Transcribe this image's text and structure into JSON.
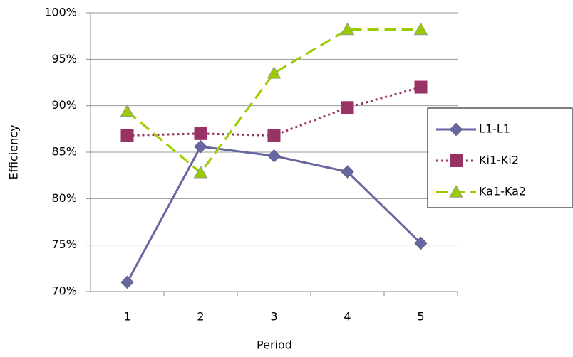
{
  "chart_data": {
    "type": "line",
    "x_label": "Period",
    "y_label": "Efficiency",
    "categories": [
      "1",
      "2",
      "3",
      "4",
      "5"
    ],
    "series": [
      {
        "name": "L1-L1",
        "color": "#6666a0",
        "marker": "diamond",
        "line_style": "solid",
        "values": [
          71.0,
          85.6,
          84.6,
          82.9,
          75.2
        ]
      },
      {
        "name": "Ki1-Ki2",
        "color": "#993366",
        "marker": "square",
        "line_style": "dotted",
        "values": [
          86.8,
          87.0,
          86.8,
          89.8,
          92.0
        ]
      },
      {
        "name": "Ka1-Ka2",
        "color": "#99cc00",
        "marker": "triangle",
        "line_style": "dashed",
        "values": [
          89.4,
          82.8,
          93.5,
          98.2,
          98.2
        ]
      }
    ],
    "ylim": [
      70,
      100
    ],
    "yticks": [
      {
        "value": 70,
        "label": "70%"
      },
      {
        "value": 75,
        "label": "75%"
      },
      {
        "value": 80,
        "label": "80%"
      },
      {
        "value": 85,
        "label": "85%"
      },
      {
        "value": 90,
        "label": "90%"
      },
      {
        "value": 95,
        "label": "95%"
      },
      {
        "value": 100,
        "label": "100%"
      }
    ],
    "grid": true,
    "legend": "right"
  }
}
